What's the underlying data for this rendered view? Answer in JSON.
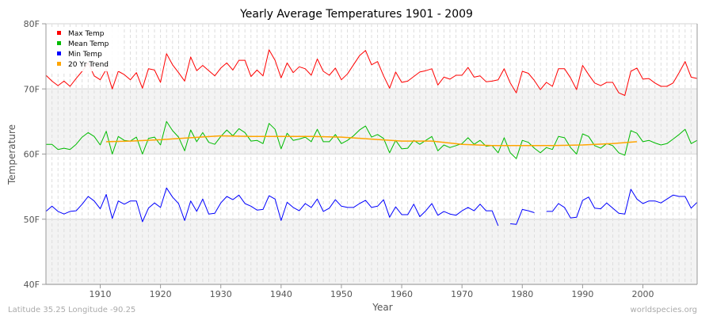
{
  "chart_data": {
    "type": "line",
    "title": "Yearly Average Temperatures 1901 - 2009",
    "xlabel": "Year",
    "ylabel": "Temperature",
    "xlim": [
      1901,
      2009
    ],
    "ylim": [
      40,
      80
    ],
    "x_ticks": [
      "1910",
      "1920",
      "1930",
      "1940",
      "1950",
      "1960",
      "1970",
      "1980",
      "1990",
      "2000"
    ],
    "y_ticks": [
      "40F",
      "50F",
      "60F",
      "70F",
      "80F"
    ],
    "grid": true,
    "legend_position": "top-left",
    "start_year": 1901,
    "series": [
      {
        "name": "Max Temp",
        "color": "#ff0000",
        "values": [
          72.1,
          71.2,
          70.5,
          71.2,
          70.4,
          71.6,
          72.7,
          74.0,
          72.0,
          71.4,
          73.0,
          70.0,
          72.7,
          72.2,
          71.4,
          72.5,
          70.1,
          73.1,
          72.9,
          71.0,
          75.4,
          73.7,
          72.5,
          71.2,
          74.9,
          72.8,
          73.6,
          72.8,
          72.0,
          73.2,
          74.0,
          72.9,
          74.4,
          74.4,
          71.9,
          72.9,
          72.0,
          76.0,
          74.4,
          71.7,
          74.0,
          72.5,
          73.4,
          73.1,
          72.1,
          74.6,
          72.7,
          72.1,
          73.2,
          71.4,
          72.3,
          73.7,
          75.1,
          75.9,
          73.7,
          74.2,
          72.0,
          70.1,
          72.6,
          71.0,
          71.2,
          71.9,
          72.6,
          72.8,
          73.1,
          70.6,
          71.8,
          71.5,
          72.1,
          72.1,
          73.3,
          71.8,
          72.0,
          71.1,
          71.2,
          71.4,
          73.1,
          70.9,
          69.4,
          72.7,
          72.4,
          71.3,
          69.9,
          71.0,
          70.4,
          73.1,
          73.1,
          71.7,
          69.9,
          73.6,
          72.2,
          70.9,
          70.5,
          71.0,
          71.0,
          69.4,
          69.0,
          72.7,
          73.2,
          71.5,
          71.6,
          70.9,
          70.4,
          70.4,
          70.9,
          72.5,
          74.2,
          71.8,
          71.6
        ]
      },
      {
        "name": "Mean Temp",
        "color": "#00bb00",
        "values": [
          61.5,
          61.5,
          60.7,
          60.9,
          60.7,
          61.5,
          62.6,
          63.3,
          62.7,
          61.4,
          63.5,
          60.0,
          62.7,
          62.1,
          62.0,
          62.6,
          60.0,
          62.4,
          62.6,
          61.4,
          65.0,
          63.6,
          62.6,
          60.5,
          63.7,
          61.9,
          63.3,
          61.8,
          61.5,
          62.7,
          63.7,
          62.8,
          63.9,
          63.3,
          62.0,
          62.1,
          61.6,
          64.7,
          63.8,
          60.8,
          63.2,
          62.1,
          62.3,
          62.6,
          61.9,
          63.8,
          61.9,
          61.9,
          63.0,
          61.6,
          62.1,
          62.8,
          63.7,
          64.3,
          62.6,
          63.0,
          62.4,
          60.2,
          62.1,
          60.8,
          60.9,
          62.1,
          61.5,
          62.1,
          62.7,
          60.5,
          61.4,
          61.0,
          61.3,
          61.6,
          62.5,
          61.5,
          62.1,
          61.2,
          61.3,
          60.2,
          62.5,
          60.2,
          59.3,
          62.1,
          61.8,
          60.9,
          60.2,
          61.0,
          60.7,
          62.7,
          62.5,
          61.0,
          60.0,
          63.1,
          62.7,
          61.3,
          60.9,
          61.6,
          61.3,
          60.2,
          59.8,
          63.6,
          63.2,
          61.9,
          62.1,
          61.7,
          61.4,
          61.6,
          62.3,
          63.0,
          63.8,
          61.6,
          62.1
        ]
      },
      {
        "name": "Min Temp",
        "color": "#0000ff",
        "values": [
          51.2,
          52.0,
          51.2,
          50.8,
          51.2,
          51.3,
          52.3,
          53.5,
          52.8,
          51.6,
          53.8,
          50.1,
          52.8,
          52.3,
          52.8,
          52.8,
          49.6,
          51.7,
          52.5,
          51.8,
          54.8,
          53.4,
          52.4,
          49.8,
          52.8,
          51.2,
          53.1,
          50.8,
          50.9,
          52.5,
          53.5,
          53.0,
          53.7,
          52.4,
          52.0,
          51.4,
          51.5,
          53.6,
          53.1,
          49.8,
          52.6,
          51.8,
          51.3,
          52.4,
          51.8,
          53.1,
          51.2,
          51.7,
          53.0,
          52.0,
          51.8,
          51.8,
          52.4,
          52.9,
          51.8,
          52.0,
          53.0,
          50.3,
          51.9,
          50.7,
          50.7,
          52.3,
          50.4,
          51.3,
          52.4,
          50.6,
          51.2,
          50.8,
          50.6,
          51.3,
          51.8,
          51.3,
          52.3,
          51.3,
          51.3,
          49.0,
          null,
          49.3,
          49.2,
          51.5,
          51.3,
          51.0,
          null,
          51.2,
          51.2,
          52.4,
          51.8,
          50.2,
          50.3,
          52.9,
          53.4,
          51.7,
          51.6,
          52.5,
          51.7,
          50.9,
          50.8,
          54.6,
          53.1,
          52.4,
          52.8,
          52.8,
          52.5,
          53.1,
          53.7,
          53.5,
          53.5,
          51.7,
          52.6
        ]
      },
      {
        "name": "20 Yr Trend",
        "color": "#ffa500",
        "x": [
          1911,
          1915,
          1920,
          1925,
          1930,
          1935,
          1940,
          1945,
          1950,
          1955,
          1960,
          1965,
          1970,
          1975,
          1980,
          1985,
          1990,
          1995,
          1999
        ],
        "values": [
          61.9,
          62.0,
          62.2,
          62.5,
          62.8,
          62.7,
          62.7,
          62.7,
          62.6,
          62.3,
          62.0,
          62.0,
          61.5,
          61.3,
          61.3,
          61.3,
          61.4,
          61.6,
          61.9
        ]
      }
    ]
  },
  "footer": {
    "location": "Latitude 35.25 Longitude -90.25",
    "site": "worldspecies.org"
  }
}
